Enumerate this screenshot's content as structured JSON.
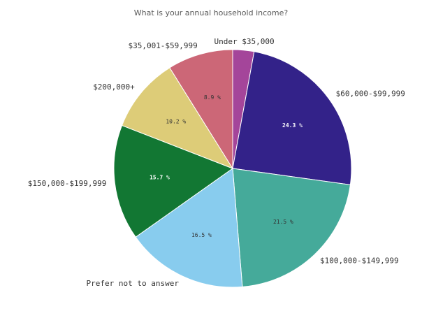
{
  "chart_data": {
    "type": "pie",
    "title": "What is your annual household income?",
    "slices": [
      {
        "label": "Under $35,000",
        "value": 2.9,
        "value_label": "",
        "color": "#a4459a",
        "label_color": "#333333"
      },
      {
        "label": "$60,000-$99,999",
        "value": 24.3,
        "value_label": "24.3 %",
        "color": "#332289",
        "label_color": "#ffffff"
      },
      {
        "label": "$100,000-$149,999",
        "value": 21.5,
        "value_label": "21.5 %",
        "color": "#45aa9a",
        "label_color": "#333333"
      },
      {
        "label": "Prefer not to answer",
        "value": 16.5,
        "value_label": "16.5 %",
        "color": "#88ccee",
        "label_color": "#333333"
      },
      {
        "label": "$150,000-$199,999",
        "value": 15.7,
        "value_label": "15.7 %",
        "color": "#127733",
        "label_color": "#ffffff"
      },
      {
        "label": "$200,000+",
        "value": 10.2,
        "value_label": "10.2 %",
        "color": "#ddcc78",
        "label_color": "#333333"
      },
      {
        "label": "$35,001-$59,999",
        "value": 8.9,
        "value_label": "8.9 %",
        "color": "#cc6777",
        "label_color": "#333333"
      }
    ],
    "start_angle_deg": 0,
    "direction": "clockwise",
    "legend": "none"
  }
}
